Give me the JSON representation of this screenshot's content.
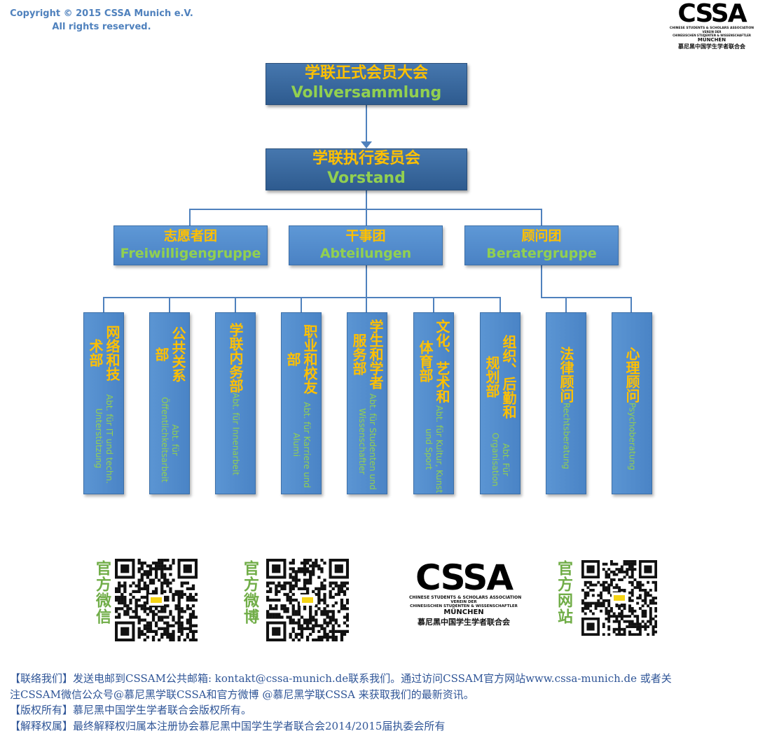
{
  "copyright": {
    "line1": "Copyright © 2015 CSSA Munich e.V.",
    "line2": "All rights reserved."
  },
  "logo": {
    "mark": "CSSA",
    "line1": "CHINESE STUDENTS & SCHOLARS ASSOCIATION",
    "line2": "VEREIN DER",
    "line3": "CHINESISCHEN STUDENTEN & WISSENSCHAFTLER",
    "line4": "MÜNCHEN",
    "line5": "慕尼黑中国学生学者联合会"
  },
  "org": {
    "assembly": {
      "zh": "学联正式会员大会",
      "de": "Vollversammlung"
    },
    "board": {
      "zh": "学联执行委员会",
      "de": "Vorstand"
    },
    "groups": [
      {
        "zh": "志愿者团",
        "de": "Freiwilligengruppe"
      },
      {
        "zh": "干事团",
        "de": "Abteilungen"
      },
      {
        "zh": "顾问团",
        "de": "Beratergruppe"
      }
    ],
    "departments": [
      {
        "zh": "网络和技术部",
        "de": "Abt. für IT und techn. Unterstützung"
      },
      {
        "zh": "公共关系部",
        "de": "Abt. für Öffentlichkeitsarbeit"
      },
      {
        "zh": "学联内务部",
        "de": "Abt. für Innenarbeit"
      },
      {
        "zh": "职业和校友部",
        "de": "Abt. für Karriere und Alumi"
      },
      {
        "zh": "学生和学者服务部",
        "de": "Abt. für Studenten und Wissenschaftler"
      },
      {
        "zh": "文化、艺术和体育部",
        "de": "Abt. für Kultur, Kunst und Sport"
      },
      {
        "zh": "组织、后勤和规划部",
        "de": "Abt. Für Organisation"
      },
      {
        "zh": "法律顾问",
        "de": "Rechtsberatung"
      },
      {
        "zh": "心理顾问",
        "de": "Psychoberatung"
      }
    ]
  },
  "qr": {
    "wechat_label": "官方微信",
    "weibo_label": "官方微博",
    "website_label": "官方网站"
  },
  "footer": {
    "line1": "【联络我们】发送电邮到CSSAM公共邮箱: kontakt@cssa-munich.de联系我们。通过访问CSSAM官方网站www.cssa-munich.de 或者关",
    "line2": "注CSSAM微信公众号@慕尼黑学联CSSA和官方微博 @慕尼黑学联CSSA 来获取我们的最新资讯。",
    "line3": "【版权所有】慕尼黑中国学生学者联合会版权所有。",
    "line4": "【解释权属】最终解释权归属本注册协会慕尼黑中国学生学者联合会2014/2015届执委会所有"
  },
  "colors": {
    "chinese_text": "#FFC000",
    "german_text": "#92D050",
    "box_blue": "#4F81BD",
    "dark_blue": "#2E5B8F",
    "footer_text": "#2F5597"
  }
}
